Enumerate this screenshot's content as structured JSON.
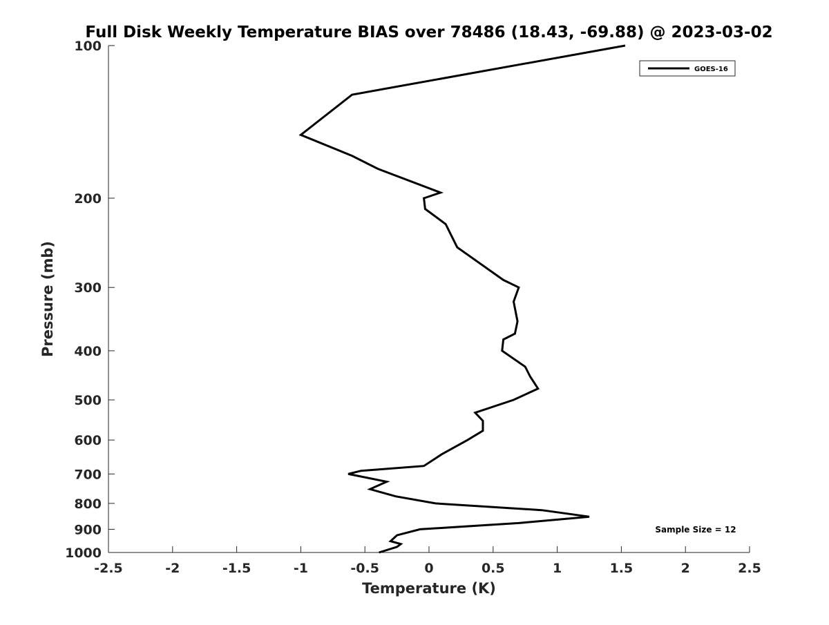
{
  "chart_data": {
    "type": "line",
    "title": "Full Disk Weekly Temperature BIAS over 78486 (18.43, -69.88) @ 2023-03-02",
    "xlabel": "Temperature (K)",
    "ylabel": "Pressure (mb)",
    "xlim": [
      -2.5,
      2.5
    ],
    "ylim": [
      100,
      1000
    ],
    "y_scale": "log",
    "y_reversed": true,
    "x_ticks": [
      -2.5,
      -2,
      -1.5,
      -1,
      -0.5,
      0,
      0.5,
      1,
      1.5,
      2,
      2.5
    ],
    "x_tick_labels": [
      "-2.5",
      "-2",
      "-1.5",
      "-1",
      "-0.5",
      "0",
      "0.5",
      "1",
      "1.5",
      "2",
      "2.5"
    ],
    "y_ticks": [
      100,
      200,
      300,
      400,
      500,
      600,
      700,
      800,
      900,
      1000
    ],
    "y_tick_labels": [
      "100",
      "200",
      "300",
      "400",
      "500",
      "600",
      "700",
      "800",
      "900",
      "1000"
    ],
    "grid": false,
    "legend_position": "top-right",
    "series": [
      {
        "name": "GOES-16",
        "color": "#000000",
        "points": [
          [
            1.53,
            100
          ],
          [
            -0.6,
            125
          ],
          [
            -1.0,
            150
          ],
          [
            -0.6,
            165
          ],
          [
            -0.4,
            175
          ],
          [
            0.09,
            195
          ],
          [
            -0.04,
            200
          ],
          [
            -0.03,
            210
          ],
          [
            0.13,
            225
          ],
          [
            0.22,
            250
          ],
          [
            0.58,
            290
          ],
          [
            0.7,
            300
          ],
          [
            0.66,
            320
          ],
          [
            0.69,
            350
          ],
          [
            0.67,
            370
          ],
          [
            0.58,
            380
          ],
          [
            0.57,
            400
          ],
          [
            0.75,
            430
          ],
          [
            0.79,
            450
          ],
          [
            0.85,
            475
          ],
          [
            0.66,
            500
          ],
          [
            0.36,
            530
          ],
          [
            0.42,
            550
          ],
          [
            0.42,
            575
          ],
          [
            0.3,
            600
          ],
          [
            0.1,
            640
          ],
          [
            -0.04,
            675
          ],
          [
            -0.53,
            690
          ],
          [
            -0.63,
            700
          ],
          [
            -0.33,
            725
          ],
          [
            -0.46,
            750
          ],
          [
            -0.26,
            775
          ],
          [
            0.05,
            800
          ],
          [
            0.88,
            825
          ],
          [
            1.25,
            850
          ],
          [
            0.7,
            875
          ],
          [
            -0.07,
            900
          ],
          [
            -0.25,
            925
          ],
          [
            -0.3,
            950
          ],
          [
            -0.22,
            962
          ],
          [
            -0.25,
            975
          ],
          [
            -0.39,
            1000
          ]
        ]
      }
    ],
    "legend": [
      "GOES-16"
    ],
    "annotations": [
      "Sample Size = 12"
    ]
  }
}
